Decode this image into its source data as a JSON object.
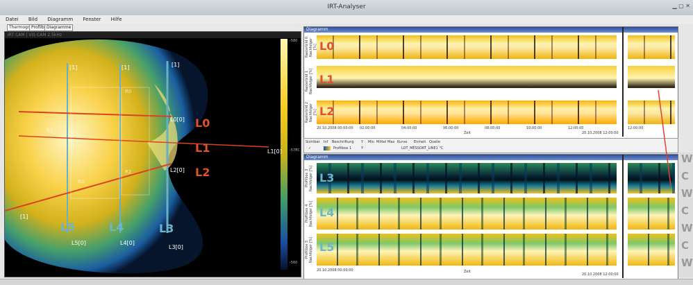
{
  "window_title": "IRT-Analyser",
  "menu": [
    "Datei",
    "Bild",
    "Diagramm",
    "Fenster",
    "Hilfe"
  ],
  "tabs": [
    "Thermografie",
    "Profilbox",
    "Diagramme"
  ],
  "thermogram": {
    "header": "IRT CAM  |  VIS CAM  2.5kHz",
    "colorbar_ticks": [
      "-580",
      "-570",
      "-560"
    ],
    "colorbar_unit": "°C",
    "line_labels": [
      {
        "name": "L0",
        "tag": "L0[0]"
      },
      {
        "name": "L1",
        "tag": "L1[0]"
      },
      {
        "name": "L2",
        "tag": "L2[0]"
      },
      {
        "name": "L3",
        "tag": "L3[0]"
      },
      {
        "name": "L4",
        "tag": "L4[0]"
      },
      {
        "name": "L5",
        "tag": "L5[0]"
      }
    ],
    "marker": "[1]",
    "region_labels": [
      "R0",
      "R1",
      "R2",
      "R3"
    ]
  },
  "upper_panel": {
    "title": "Diagramm",
    "rows": [
      {
        "label": "L0",
        "axis": "Rasterbild 0 Nachfolger [%]"
      },
      {
        "label": "L1",
        "axis": "Rasterbild 1 Nachfolger [%]"
      },
      {
        "label": "L2",
        "axis": "Rasterbild 2 Nachfolger [%]"
      }
    ],
    "time_ticks": [
      "20.10.2008 00:00:00",
      "02:00:00",
      "04:00:00",
      "06:00:00",
      "08:00:00",
      "10:00:00",
      "12:00:00",
      "20.10.2008 12:00:00"
    ],
    "time_axis_label": "Zeit",
    "zoom_time": "12:00:00"
  },
  "legend_bar": {
    "headers": [
      "Sichtbar",
      "Inf",
      "Beschriftung",
      "Y",
      "Min",
      "Mittel",
      "Max",
      "Kurve",
      "Einheit",
      "Quelle"
    ],
    "row": [
      "✓",
      "",
      "Profilbox 1",
      "Y",
      "",
      "",
      "",
      "",
      "LOT_MESSORT_LINE1 °C",
      ""
    ]
  },
  "lower_panel": {
    "title": "Diagramm",
    "rows": [
      {
        "label": "L3",
        "axis": "Profilbox 3 Nachfolger [%]"
      },
      {
        "label": "L4",
        "axis": "Profilbox 4 Nachfolger [%]"
      },
      {
        "label": "L5",
        "axis": "Profilbox 5 Nachfolger [%]"
      }
    ],
    "time_ticks": [
      "20.10.2008 00:00:00",
      "Zeit",
      "20.10.2008 12:00:00"
    ]
  },
  "side_letters": [
    "W",
    "C",
    "W",
    "C",
    "W",
    "C",
    "W"
  ],
  "colors": {
    "label_red": "#e0522a",
    "label_cyan": "#6bb6cc",
    "line_red": "#d9441e",
    "line_cyan": "#69b0c4"
  }
}
